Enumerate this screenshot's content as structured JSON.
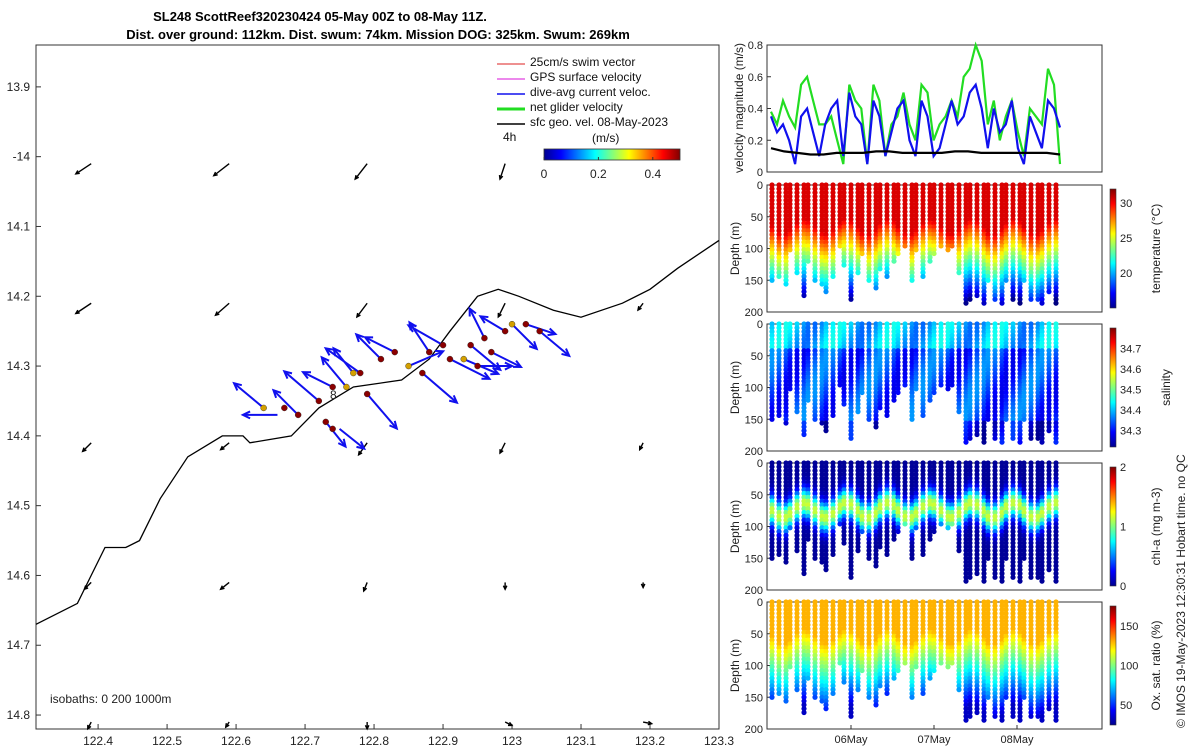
{
  "title_line1": "SL248 ScottReef320230424 05-May 00Z to 08-May 11Z.",
  "title_line2": "Dist. over ground: 112km. Dist. swum: 74km. Mission DOG: 325km. Swum: 269km",
  "footer": "© IMOS 19-May-2023 12:30:31 Hobart time. no QC",
  "colors": {
    "swim_vector": "#dd2222",
    "gps_velocity": "#e040e0",
    "current": "#1010ee",
    "net_glider": "#22dd22",
    "geostrophic": "#000000",
    "coast": "#000000"
  },
  "chart_data": [
    {
      "id": "map",
      "type": "scatter",
      "title": "SL248 ScottReef320230424 05-May 00Z to 08-May 11Z.",
      "xlabel": "",
      "ylabel": "",
      "xlim": [
        122.31,
        123.3
      ],
      "ylim": [
        -14.82,
        -13.84
      ],
      "x_ticks": [
        122.4,
        122.5,
        122.6,
        122.7,
        122.8,
        122.9,
        123,
        123.1,
        123.2,
        123.3
      ],
      "x_ticklabels": [
        "122.4",
        "122.5",
        "122.6",
        "122.7",
        "122.8",
        "122.9",
        "123",
        "123.1",
        "123.2",
        "123.3"
      ],
      "y_ticks": [
        -13.9,
        -14,
        -14.1,
        -14.2,
        -14.3,
        -14.4,
        -14.5,
        -14.6,
        -14.7,
        -14.8
      ],
      "y_ticklabels": [
        "13.9",
        "-14",
        "14.1",
        "14.2",
        "14.3",
        "14.4",
        "14.5",
        "14.6",
        "14.7",
        "14.8"
      ],
      "legend": [
        "25cm/s swim vector",
        "GPS surface velocity",
        "dive-avg current veloc.",
        "net glider velocity",
        "sfc geo. vel. 08-May-2023"
      ],
      "legend_position": "top-right",
      "colorbar": {
        "label": "(m/s)",
        "ticks": [
          0,
          0.2,
          0.4
        ],
        "range": [
          0,
          0.5
        ],
        "note": "4h"
      },
      "isobath_note": "isobaths: 0   200  1000m",
      "track_label": "8",
      "coastline": [
        [
          122.31,
          -14.67
        ],
        [
          122.37,
          -14.64
        ],
        [
          122.39,
          -14.6
        ],
        [
          122.41,
          -14.56
        ],
        [
          122.44,
          -14.56
        ],
        [
          122.46,
          -14.55
        ],
        [
          122.49,
          -14.49
        ],
        [
          122.53,
          -14.43
        ],
        [
          122.58,
          -14.4
        ],
        [
          122.61,
          -14.4
        ],
        [
          122.62,
          -14.41
        ],
        [
          122.68,
          -14.4
        ],
        [
          122.72,
          -14.36
        ],
        [
          122.77,
          -14.33
        ],
        [
          122.84,
          -14.32
        ],
        [
          122.88,
          -14.29
        ],
        [
          122.91,
          -14.25
        ],
        [
          122.95,
          -14.2
        ],
        [
          122.98,
          -14.19
        ],
        [
          123.01,
          -14.2
        ],
        [
          123.06,
          -14.22
        ],
        [
          123.1,
          -14.23
        ],
        [
          123.16,
          -14.21
        ],
        [
          123.2,
          -14.19
        ],
        [
          123.24,
          -14.16
        ],
        [
          123.3,
          -14.12
        ]
      ],
      "geostrophic_arrows": [
        {
          "lon": 122.39,
          "lat": -14.01,
          "u": -0.09,
          "v": -0.06
        },
        {
          "lon": 122.59,
          "lat": -14.01,
          "u": -0.09,
          "v": -0.07
        },
        {
          "lon": 122.79,
          "lat": -14.01,
          "u": -0.07,
          "v": -0.09
        },
        {
          "lon": 122.99,
          "lat": -14.01,
          "u": -0.03,
          "v": -0.09
        },
        {
          "lon": 122.39,
          "lat": -14.21,
          "u": -0.09,
          "v": -0.06
        },
        {
          "lon": 122.59,
          "lat": -14.21,
          "u": -0.08,
          "v": -0.07
        },
        {
          "lon": 122.79,
          "lat": -14.21,
          "u": -0.06,
          "v": -0.08
        },
        {
          "lon": 122.99,
          "lat": -14.21,
          "u": -0.04,
          "v": -0.08
        },
        {
          "lon": 123.19,
          "lat": -14.21,
          "u": -0.03,
          "v": -0.04
        },
        {
          "lon": 122.39,
          "lat": -14.41,
          "u": -0.05,
          "v": -0.05
        },
        {
          "lon": 122.59,
          "lat": -14.41,
          "u": -0.05,
          "v": -0.04
        },
        {
          "lon": 122.79,
          "lat": -14.41,
          "u": -0.05,
          "v": -0.07
        },
        {
          "lon": 122.99,
          "lat": -14.41,
          "u": -0.03,
          "v": -0.06
        },
        {
          "lon": 123.19,
          "lat": -14.41,
          "u": -0.02,
          "v": -0.04
        },
        {
          "lon": 122.39,
          "lat": -14.61,
          "u": -0.04,
          "v": -0.04
        },
        {
          "lon": 122.59,
          "lat": -14.61,
          "u": -0.05,
          "v": -0.04
        },
        {
          "lon": 122.79,
          "lat": -14.61,
          "u": -0.02,
          "v": -0.05
        },
        {
          "lon": 122.99,
          "lat": -14.61,
          "u": 0.0,
          "v": -0.04
        },
        {
          "lon": 123.19,
          "lat": -14.61,
          "u": 0.0,
          "v": -0.03
        },
        {
          "lon": 122.39,
          "lat": -14.81,
          "u": -0.02,
          "v": -0.04
        },
        {
          "lon": 122.59,
          "lat": -14.81,
          "u": -0.02,
          "v": -0.03
        },
        {
          "lon": 122.79,
          "lat": -14.81,
          "u": 0.0,
          "v": -0.04
        },
        {
          "lon": 122.99,
          "lat": -14.81,
          "u": 0.04,
          "v": -0.02
        },
        {
          "lon": 123.19,
          "lat": -14.81,
          "u": 0.05,
          "v": -0.01
        }
      ],
      "track_points": [
        {
          "lon": 122.64,
          "lat": -14.36
        },
        {
          "lon": 122.67,
          "lat": -14.36
        },
        {
          "lon": 122.69,
          "lat": -14.37
        },
        {
          "lon": 122.72,
          "lat": -14.35
        },
        {
          "lon": 122.74,
          "lat": -14.33
        },
        {
          "lon": 122.76,
          "lat": -14.33
        },
        {
          "lon": 122.78,
          "lat": -14.31
        },
        {
          "lon": 122.79,
          "lat": -14.34
        },
        {
          "lon": 122.81,
          "lat": -14.29
        },
        {
          "lon": 122.83,
          "lat": -14.28
        },
        {
          "lon": 122.85,
          "lat": -14.3
        },
        {
          "lon": 122.87,
          "lat": -14.31
        },
        {
          "lon": 122.88,
          "lat": -14.28
        },
        {
          "lon": 122.9,
          "lat": -14.27
        },
        {
          "lon": 122.91,
          "lat": -14.29
        },
        {
          "lon": 122.93,
          "lat": -14.29
        },
        {
          "lon": 122.94,
          "lat": -14.27
        },
        {
          "lon": 122.96,
          "lat": -14.26
        },
        {
          "lon": 122.97,
          "lat": -14.28
        },
        {
          "lon": 122.99,
          "lat": -14.25
        },
        {
          "lon": 123.0,
          "lat": -14.24
        },
        {
          "lon": 123.02,
          "lat": -14.24
        },
        {
          "lon": 123.04,
          "lat": -14.25
        },
        {
          "lon": 122.73,
          "lat": -14.38
        },
        {
          "lon": 122.74,
          "lat": -14.39
        },
        {
          "lon": 122.77,
          "lat": -14.31
        },
        {
          "lon": 122.95,
          "lat": -14.3
        }
      ],
      "current_vectors": [
        {
          "lon": 122.64,
          "lat": -14.36,
          "u": -0.06,
          "v": 0.05
        },
        {
          "lon": 122.66,
          "lat": -14.37,
          "u": -0.07,
          "v": 0.0
        },
        {
          "lon": 122.69,
          "lat": -14.37,
          "u": -0.05,
          "v": 0.05
        },
        {
          "lon": 122.72,
          "lat": -14.35,
          "u": -0.07,
          "v": 0.06
        },
        {
          "lon": 122.74,
          "lat": -14.33,
          "u": -0.06,
          "v": 0.03
        },
        {
          "lon": 122.76,
          "lat": -14.33,
          "u": -0.05,
          "v": 0.06
        },
        {
          "lon": 122.78,
          "lat": -14.31,
          "u": -0.07,
          "v": 0.05
        },
        {
          "lon": 122.79,
          "lat": -14.34,
          "u": 0.06,
          "v": -0.07
        },
        {
          "lon": 122.81,
          "lat": -14.29,
          "u": -0.05,
          "v": 0.05
        },
        {
          "lon": 122.83,
          "lat": -14.28,
          "u": -0.06,
          "v": 0.03
        },
        {
          "lon": 122.85,
          "lat": -14.3,
          "u": 0.07,
          "v": 0.03
        },
        {
          "lon": 122.87,
          "lat": -14.31,
          "u": 0.07,
          "v": -0.06
        },
        {
          "lon": 122.88,
          "lat": -14.28,
          "u": -0.04,
          "v": 0.06
        },
        {
          "lon": 122.9,
          "lat": -14.27,
          "u": -0.07,
          "v": 0.04
        },
        {
          "lon": 122.91,
          "lat": -14.29,
          "u": 0.08,
          "v": -0.04
        },
        {
          "lon": 122.93,
          "lat": -14.29,
          "u": 0.07,
          "v": -0.03
        },
        {
          "lon": 122.94,
          "lat": -14.27,
          "u": 0.06,
          "v": -0.05
        },
        {
          "lon": 122.96,
          "lat": -14.26,
          "u": -0.03,
          "v": 0.06
        },
        {
          "lon": 122.97,
          "lat": -14.28,
          "u": 0.06,
          "v": -0.03
        },
        {
          "lon": 122.99,
          "lat": -14.25,
          "u": -0.05,
          "v": 0.03
        },
        {
          "lon": 123.0,
          "lat": -14.24,
          "u": 0.05,
          "v": -0.05
        },
        {
          "lon": 123.02,
          "lat": -14.24,
          "u": 0.06,
          "v": -0.02
        },
        {
          "lon": 123.04,
          "lat": -14.25,
          "u": 0.06,
          "v": -0.05
        },
        {
          "lon": 122.73,
          "lat": -14.38,
          "u": 0.04,
          "v": -0.05
        },
        {
          "lon": 122.75,
          "lat": -14.39,
          "u": 0.05,
          "v": -0.04
        },
        {
          "lon": 122.77,
          "lat": -14.31,
          "u": -0.04,
          "v": 0.05
        },
        {
          "lon": 122.95,
          "lat": -14.3,
          "u": 0.07,
          "v": 0.0
        }
      ]
    },
    {
      "id": "velocity",
      "type": "line",
      "xlabel": "",
      "ylabel": "velocity magnitude (m/s)",
      "xlim": [
        0,
        10
      ],
      "ylim": [
        0,
        0.8
      ],
      "y_ticks": [
        0,
        0.2,
        0.4,
        0.6,
        0.8
      ],
      "series": [
        {
          "name": "net glider velocity",
          "values": [
            0.38,
            0.3,
            0.45,
            0.35,
            0.28,
            0.55,
            0.6,
            0.45,
            0.3,
            0.3,
            0.35,
            0.2,
            0.05,
            0.55,
            0.45,
            0.4,
            0.05,
            0.55,
            0.45,
            0.1,
            0.3,
            0.35,
            0.5,
            0.3,
            0.2,
            0.55,
            0.5,
            0.2,
            0.3,
            0.35,
            0.45,
            0.35,
            0.6,
            0.65,
            0.8,
            0.7,
            0.3,
            0.45,
            0.2,
            0.35,
            0.45,
            0.25,
            0.1,
            0.4,
            0.35,
            0.3,
            0.65,
            0.55,
            0.05
          ]
        },
        {
          "name": "dive-avg current veloc.",
          "values": [
            0.35,
            0.25,
            0.3,
            0.2,
            0.05,
            0.35,
            0.4,
            0.25,
            0.1,
            0.3,
            0.4,
            0.45,
            0.1,
            0.5,
            0.35,
            0.3,
            0.05,
            0.45,
            0.35,
            0.1,
            0.25,
            0.4,
            0.45,
            0.2,
            0.1,
            0.45,
            0.35,
            0.1,
            0.15,
            0.3,
            0.45,
            0.3,
            0.35,
            0.5,
            0.55,
            0.4,
            0.15,
            0.4,
            0.25,
            0.3,
            0.45,
            0.15,
            0.05,
            0.35,
            0.25,
            0.15,
            0.45,
            0.4,
            0.28
          ]
        },
        {
          "name": "sfc geo. vel.",
          "values": [
            0.15,
            0.13,
            0.12,
            0.11,
            0.11,
            0.12,
            0.12,
            0.12,
            0.13,
            0.13,
            0.12,
            0.12,
            0.12,
            0.12,
            0.13,
            0.13,
            0.12,
            0.12,
            0.12,
            0.12,
            0.12,
            0.12,
            0.11
          ]
        }
      ]
    },
    {
      "id": "temperature",
      "type": "scatter",
      "xlabel": "",
      "ylabel": "Depth (m)",
      "ylim": [
        200,
        0
      ],
      "y_ticks": [
        0,
        50,
        100,
        150,
        200
      ],
      "colorbar_label": "temperature (°C)",
      "colorbar_ticks": [
        20,
        25,
        30
      ],
      "colorbar_range": [
        15,
        32
      ]
    },
    {
      "id": "salinity",
      "type": "scatter",
      "xlabel": "",
      "ylabel": "Depth (m)",
      "ylim": [
        200,
        0
      ],
      "y_ticks": [
        0,
        50,
        100,
        150,
        200
      ],
      "colorbar_label": "salinity",
      "colorbar_ticks": [
        34.3,
        34.4,
        34.5,
        34.6,
        34.7
      ],
      "colorbar_range": [
        34.22,
        34.8
      ]
    },
    {
      "id": "chla",
      "type": "scatter",
      "xlabel": "",
      "ylabel": "Depth (m)",
      "ylim": [
        200,
        0
      ],
      "y_ticks": [
        0,
        50,
        100,
        150,
        200
      ],
      "colorbar_label": "chl-a (mg m-3)",
      "colorbar_ticks": [
        0,
        1,
        2
      ],
      "colorbar_range": [
        0,
        2
      ]
    },
    {
      "id": "oxygen",
      "type": "scatter",
      "xlabel": "",
      "ylabel": "Depth (m)",
      "ylim": [
        200,
        0
      ],
      "y_ticks": [
        0,
        50,
        100,
        150,
        200
      ],
      "colorbar_label": "Ox. sat. ratio (%)",
      "colorbar_ticks": [
        50,
        100,
        150
      ],
      "colorbar_range": [
        25,
        175
      ],
      "x_ticklabels": [
        "06May",
        "07May",
        "08May"
      ]
    }
  ]
}
